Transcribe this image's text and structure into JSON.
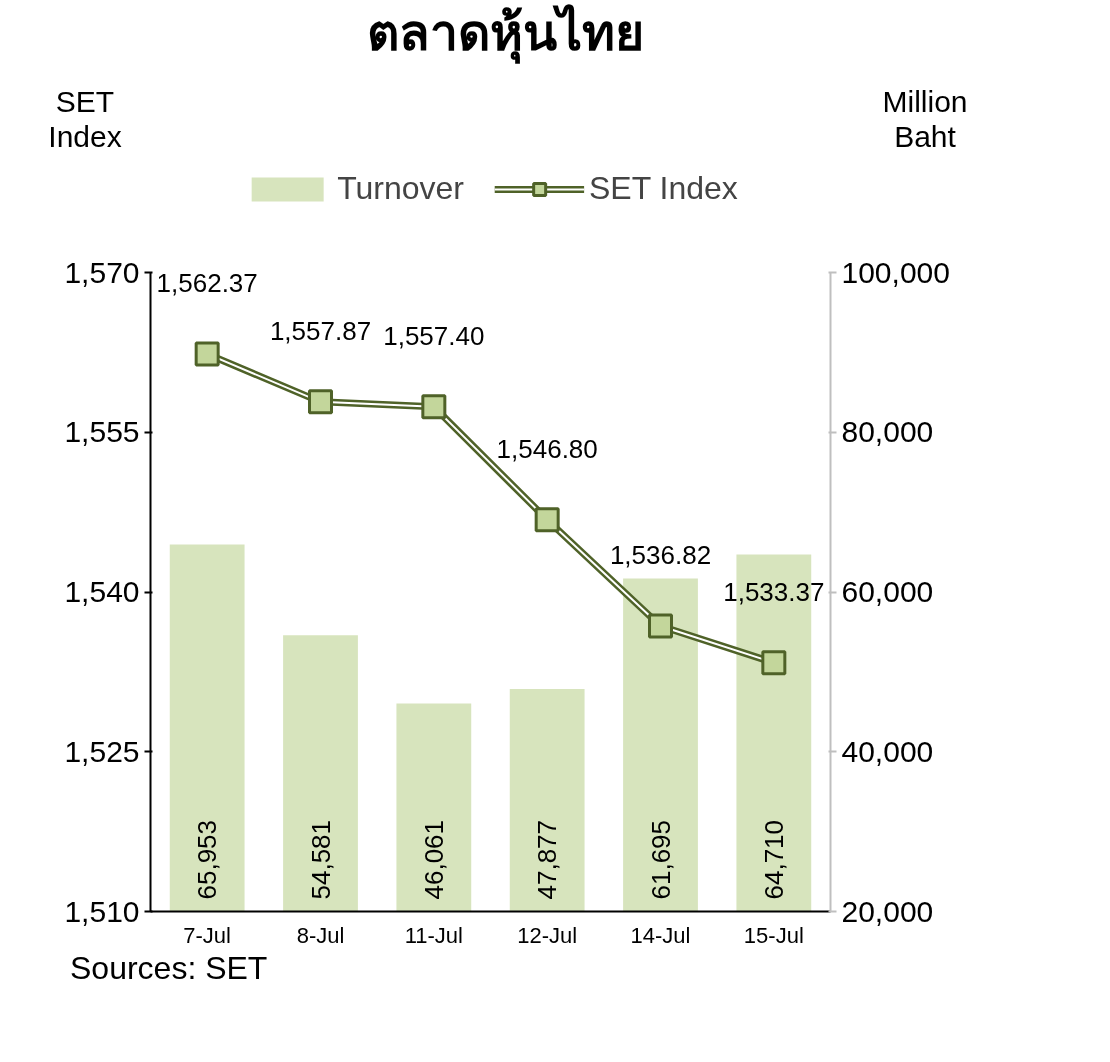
{
  "chart_data": {
    "type": "bar",
    "title": "ตลาดหุ้นไทย",
    "ylabel": "SET\nIndex",
    "y2label": "Million\nBaht",
    "categories": [
      "7-Jul",
      "8-Jul",
      "11-Jul",
      "12-Jul",
      "14-Jul",
      "15-Jul"
    ],
    "series": [
      {
        "name": "Turnover",
        "axis": "y2",
        "color": "#d7e4bd",
        "values": [
          65953,
          54581,
          46061,
          47877,
          61695,
          64710
        ],
        "value_labels": [
          "65,953",
          "54,581",
          "46,061",
          "47,877",
          "61,695",
          "64,710"
        ]
      },
      {
        "name": "SET Index",
        "type": "line",
        "axis": "y",
        "color": "#4f6228",
        "values": [
          1562.37,
          1557.87,
          1557.4,
          1546.8,
          1536.82,
          1533.37
        ],
        "value_labels": [
          "1,562.37",
          "1,557.87",
          "1,557.40",
          "1,546.80",
          "1,536.82",
          "1,533.37"
        ]
      }
    ],
    "marker": "square",
    "line_style": "solid",
    "ylim": [
      1510,
      1570
    ],
    "yticks": [
      {
        "value": 1510,
        "label": "1,510"
      },
      {
        "value": 1525,
        "label": "1,525"
      },
      {
        "value": 1540,
        "label": "1,540"
      },
      {
        "value": 1555,
        "label": "1,555"
      },
      {
        "value": 1570,
        "label": "1,570"
      }
    ],
    "y2lim": [
      20000,
      100000
    ],
    "y2ticks": [
      {
        "value": 20000,
        "label": "20,000"
      },
      {
        "value": 40000,
        "label": "40,000"
      },
      {
        "value": 60000,
        "label": "60,000"
      },
      {
        "value": 80000,
        "label": "80,000"
      },
      {
        "value": 100000,
        "label": "100,000"
      }
    ],
    "grid": false,
    "legend": "top",
    "annotations": [
      "Sources: SET"
    ]
  }
}
